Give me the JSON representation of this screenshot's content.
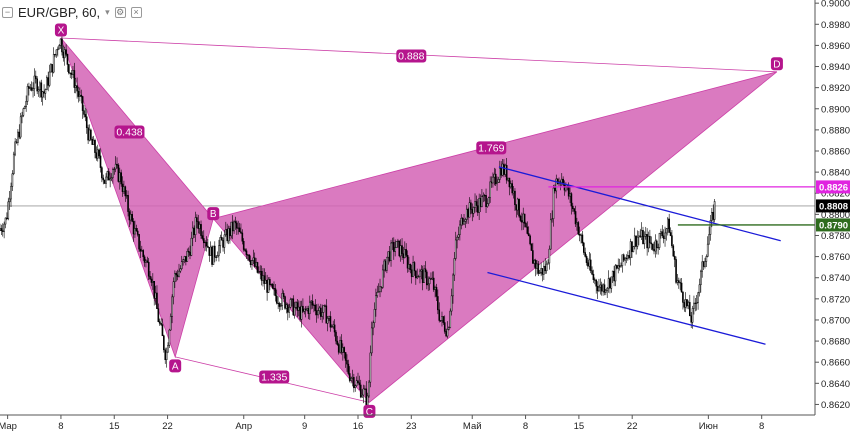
{
  "header": {
    "symbol": "EUR/GBP, 60,",
    "collapse_icon": "minus-square-icon",
    "chevron_icon": "chevron-down-icon",
    "settings_icon": "gear-icon",
    "close_icon": "close-icon"
  },
  "colors": {
    "candle": "#000000",
    "pattern_fill": "#d463b5",
    "pattern_line": "#cc3fa7",
    "label_bg": "#b5158d",
    "channel": "#1b1bd8",
    "price_line_magenta": "#e024e0",
    "price_line_green": "#2e6b1e",
    "last_price_bg": "#000000",
    "axis_text": "#222222"
  },
  "chart_data": {
    "type": "candlestick",
    "symbol": "EUR/GBP",
    "timeframe": "60",
    "y_axis": {
      "ticks": [
        "0.8620",
        "0.8640",
        "0.8660",
        "0.8680",
        "0.8700",
        "0.8720",
        "0.8740",
        "0.8760",
        "0.8780",
        "0.8800",
        "0.8820",
        "0.8840",
        "0.8860",
        "0.8880",
        "0.8900",
        "0.8920",
        "0.8940",
        "0.8960",
        "0.8980",
        "0.9000"
      ],
      "range": [
        0.861,
        0.9003
      ]
    },
    "x_axis": {
      "ticks": [
        {
          "label": "Мар",
          "day": 0
        },
        {
          "label": "8",
          "day": 7
        },
        {
          "label": "15",
          "day": 14
        },
        {
          "label": "22",
          "day": 21
        },
        {
          "label": "Апр",
          "day": 31
        },
        {
          "label": "9",
          "day": 39
        },
        {
          "label": "16",
          "day": 46
        },
        {
          "label": "23",
          "day": 53
        },
        {
          "label": "Май",
          "day": 61
        },
        {
          "label": "8",
          "day": 68
        },
        {
          "label": "15",
          "day": 75
        },
        {
          "label": "22",
          "day": 82
        },
        {
          "label": "Июн",
          "day": 92
        },
        {
          "label": "8",
          "day": 99
        }
      ],
      "range_days": [
        -1,
        106
      ]
    },
    "price_path": [
      [
        -1,
        0.8785
      ],
      [
        0,
        0.8795
      ],
      [
        1,
        0.8855
      ],
      [
        2,
        0.889
      ],
      [
        3,
        0.892
      ],
      [
        4,
        0.8925
      ],
      [
        5,
        0.8915
      ],
      [
        6,
        0.894
      ],
      [
        7,
        0.8967
      ],
      [
        8,
        0.8945
      ],
      [
        9,
        0.8925
      ],
      [
        10,
        0.89
      ],
      [
        11,
        0.887
      ],
      [
        12,
        0.8855
      ],
      [
        13,
        0.883
      ],
      [
        14,
        0.8845
      ],
      [
        15,
        0.8835
      ],
      [
        16,
        0.8805
      ],
      [
        17,
        0.878
      ],
      [
        18,
        0.876
      ],
      [
        19,
        0.8745
      ],
      [
        20,
        0.87
      ],
      [
        21,
        0.8665
      ],
      [
        22,
        0.874
      ],
      [
        23,
        0.875
      ],
      [
        24,
        0.8765
      ],
      [
        25,
        0.8795
      ],
      [
        26,
        0.878
      ],
      [
        27,
        0.876
      ],
      [
        28,
        0.877
      ],
      [
        29,
        0.878
      ],
      [
        30,
        0.879
      ],
      [
        31,
        0.8775
      ],
      [
        32,
        0.876
      ],
      [
        33,
        0.8745
      ],
      [
        34,
        0.8735
      ],
      [
        35,
        0.8725
      ],
      [
        36,
        0.872
      ],
      [
        37,
        0.8715
      ],
      [
        38,
        0.871
      ],
      [
        39,
        0.8705
      ],
      [
        40,
        0.8715
      ],
      [
        41,
        0.871
      ],
      [
        42,
        0.8705
      ],
      [
        43,
        0.869
      ],
      [
        44,
        0.867
      ],
      [
        45,
        0.865
      ],
      [
        46,
        0.864
      ],
      [
        47,
        0.863
      ],
      [
        47.5,
        0.8622
      ],
      [
        48,
        0.87
      ],
      [
        49,
        0.873
      ],
      [
        50,
        0.876
      ],
      [
        51,
        0.877
      ],
      [
        52,
        0.8765
      ],
      [
        53,
        0.875
      ],
      [
        54,
        0.8745
      ],
      [
        55,
        0.874
      ],
      [
        56,
        0.8735
      ],
      [
        57,
        0.87
      ],
      [
        58,
        0.869
      ],
      [
        59,
        0.877
      ],
      [
        60,
        0.88
      ],
      [
        61,
        0.8805
      ],
      [
        62,
        0.881
      ],
      [
        63,
        0.8815
      ],
      [
        64,
        0.883
      ],
      [
        65,
        0.8845
      ],
      [
        66,
        0.8835
      ],
      [
        67,
        0.881
      ],
      [
        68,
        0.879
      ],
      [
        69,
        0.876
      ],
      [
        70,
        0.8745
      ],
      [
        71,
        0.875
      ],
      [
        72,
        0.883
      ],
      [
        73,
        0.8835
      ],
      [
        74,
        0.8815
      ],
      [
        75,
        0.879
      ],
      [
        76,
        0.876
      ],
      [
        77,
        0.874
      ],
      [
        78,
        0.873
      ],
      [
        79,
        0.8735
      ],
      [
        80,
        0.8745
      ],
      [
        81,
        0.8755
      ],
      [
        82,
        0.877
      ],
      [
        83,
        0.878
      ],
      [
        84,
        0.8775
      ],
      [
        85,
        0.877
      ],
      [
        86,
        0.878
      ],
      [
        87,
        0.879
      ],
      [
        88,
        0.874
      ],
      [
        89,
        0.872
      ],
      [
        90,
        0.87
      ],
      [
        91,
        0.8735
      ],
      [
        92,
        0.877
      ],
      [
        93,
        0.8808
      ]
    ],
    "harmonic_pattern": {
      "points": [
        {
          "label": "X",
          "day": 7,
          "price": 0.8967
        },
        {
          "label": "A",
          "day": 22,
          "price": 0.8665
        },
        {
          "label": "B",
          "day": 27,
          "price": 0.8796
        },
        {
          "label": "C",
          "day": 47.5,
          "price": 0.8622
        },
        {
          "label": "D",
          "day": 101,
          "price": 0.8935
        }
      ],
      "ratios": [
        {
          "text": "0.438",
          "day": 16,
          "price": 0.8878
        },
        {
          "text": "1.335",
          "day": 35,
          "price": 0.8646
        },
        {
          "text": "1.769",
          "day": 63.5,
          "price": 0.8863
        },
        {
          "text": "0.888",
          "day": 53,
          "price": 0.895
        }
      ]
    },
    "channel_lines": [
      {
        "from": {
          "day": 64.5,
          "price": 0.8845
        },
        "to": {
          "day": 101.5,
          "price": 0.8775
        }
      },
      {
        "from": {
          "day": 63,
          "price": 0.8745
        },
        "to": {
          "day": 99.5,
          "price": 0.8677
        }
      }
    ],
    "horizontal_lines": [
      {
        "price": 0.8826,
        "from_day": 71,
        "label": "0.8826",
        "color": "#e024e0"
      },
      {
        "price": 0.879,
        "from_day": 88,
        "label": "0.8790",
        "color": "#2e6b1e"
      }
    ],
    "last_price": {
      "price": 0.8808,
      "label": "0.8808"
    }
  }
}
